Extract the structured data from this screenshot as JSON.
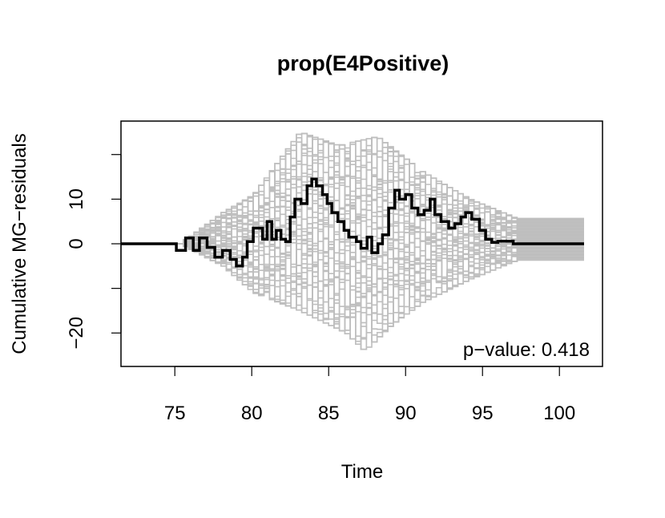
{
  "chart_data": {
    "type": "line",
    "title": "prop(E4Positive)",
    "xlabel": "Time",
    "ylabel": "Cumulative MG−residuals",
    "xlim": [
      71.5,
      102.8
    ],
    "ylim": [
      -27.5,
      27.5
    ],
    "xticks": [
      75,
      80,
      85,
      90,
      95,
      100
    ],
    "xtick_labels": [
      "75",
      "80",
      "85",
      "90",
      "95",
      "100"
    ],
    "yticks": [
      -20,
      -10,
      0,
      10,
      20
    ],
    "ytick_labels": [
      "−20",
      "",
      "0",
      "10",
      ""
    ],
    "grid": false,
    "annotation": "p−value: 0.418",
    "colors": {
      "observed": "#000000",
      "simulated": "#bebebe"
    },
    "observed_path": [
      [
        71.5,
        0
      ],
      [
        75.1,
        0
      ],
      [
        75.1,
        -1.5
      ],
      [
        75.7,
        -1.5
      ],
      [
        75.7,
        1.3
      ],
      [
        76.2,
        1.3
      ],
      [
        76.2,
        -1.5
      ],
      [
        76.6,
        -1.5
      ],
      [
        76.6,
        1.3
      ],
      [
        77.1,
        1.3
      ],
      [
        77.1,
        -0.8
      ],
      [
        77.6,
        -0.8
      ],
      [
        77.6,
        -3.0
      ],
      [
        78.1,
        -3.0
      ],
      [
        78.1,
        -1.5
      ],
      [
        78.6,
        -1.5
      ],
      [
        78.6,
        -3.5
      ],
      [
        79.0,
        -3.5
      ],
      [
        79.0,
        -5.0
      ],
      [
        79.4,
        -5.0
      ],
      [
        79.4,
        -3.0
      ],
      [
        79.7,
        -3.0
      ],
      [
        79.7,
        0.5
      ],
      [
        80.1,
        0.5
      ],
      [
        80.1,
        3.5
      ],
      [
        80.7,
        3.5
      ],
      [
        80.7,
        1.0
      ],
      [
        81.0,
        1.0
      ],
      [
        81.0,
        5.0
      ],
      [
        81.3,
        5.0
      ],
      [
        81.3,
        1.0
      ],
      [
        81.6,
        1.0
      ],
      [
        81.6,
        3.0
      ],
      [
        81.9,
        3.0
      ],
      [
        81.9,
        1.0
      ],
      [
        82.2,
        1.0
      ],
      [
        82.2,
        0.5
      ],
      [
        82.5,
        0.5
      ],
      [
        82.5,
        6.0
      ],
      [
        82.8,
        6.0
      ],
      [
        82.8,
        10.0
      ],
      [
        83.2,
        10.0
      ],
      [
        83.2,
        9.0
      ],
      [
        83.6,
        9.0
      ],
      [
        83.6,
        13.0
      ],
      [
        83.9,
        13.0
      ],
      [
        83.9,
        14.5
      ],
      [
        84.2,
        14.5
      ],
      [
        84.2,
        13.0
      ],
      [
        84.6,
        13.0
      ],
      [
        84.6,
        11.0
      ],
      [
        84.9,
        11.0
      ],
      [
        84.9,
        9.0
      ],
      [
        85.2,
        9.0
      ],
      [
        85.2,
        7.0
      ],
      [
        85.6,
        7.0
      ],
      [
        85.6,
        5.0
      ],
      [
        86.0,
        5.0
      ],
      [
        86.0,
        3.0
      ],
      [
        86.3,
        3.0
      ],
      [
        86.3,
        1.5
      ],
      [
        86.8,
        1.5
      ],
      [
        86.8,
        0.5
      ],
      [
        87.1,
        0.5
      ],
      [
        87.1,
        -1.0
      ],
      [
        87.5,
        -1.0
      ],
      [
        87.5,
        1.5
      ],
      [
        87.8,
        1.5
      ],
      [
        87.8,
        -2.0
      ],
      [
        88.2,
        -2.0
      ],
      [
        88.2,
        0
      ],
      [
        88.5,
        0
      ],
      [
        88.5,
        2.0
      ],
      [
        88.9,
        2.0
      ],
      [
        88.9,
        8.0
      ],
      [
        89.3,
        8.0
      ],
      [
        89.3,
        12.0
      ],
      [
        89.6,
        12.0
      ],
      [
        89.6,
        10.0
      ],
      [
        90.0,
        10.0
      ],
      [
        90.0,
        11.0
      ],
      [
        90.4,
        11.0
      ],
      [
        90.4,
        8.0
      ],
      [
        90.8,
        8.0
      ],
      [
        90.8,
        6.5
      ],
      [
        91.2,
        6.5
      ],
      [
        91.2,
        7.5
      ],
      [
        91.6,
        7.5
      ],
      [
        91.6,
        10.0
      ],
      [
        91.9,
        10.0
      ],
      [
        91.9,
        6.5
      ],
      [
        92.3,
        6.5
      ],
      [
        92.3,
        5.0
      ],
      [
        92.8,
        5.0
      ],
      [
        92.8,
        3.5
      ],
      [
        93.2,
        3.5
      ],
      [
        93.2,
        4.5
      ],
      [
        93.6,
        4.5
      ],
      [
        93.6,
        6.0
      ],
      [
        93.9,
        6.0
      ],
      [
        93.9,
        7.0
      ],
      [
        94.3,
        7.0
      ],
      [
        94.3,
        5.5
      ],
      [
        94.8,
        5.5
      ],
      [
        94.8,
        3.0
      ],
      [
        95.2,
        3.0
      ],
      [
        95.2,
        1.0
      ],
      [
        95.6,
        1.0
      ],
      [
        95.6,
        0.3
      ],
      [
        96.0,
        0.3
      ],
      [
        96.0,
        0.6
      ],
      [
        97.0,
        0.6
      ],
      [
        97.0,
        0
      ],
      [
        101.6,
        0
      ]
    ],
    "simulated_paths": {
      "count": 40,
      "start": 75.2,
      "end": 101.6,
      "envelope": [
        [
          75.2,
          0
        ],
        [
          78.0,
          7
        ],
        [
          80.0,
          11
        ],
        [
          83.0,
          25
        ],
        [
          85.5,
          22
        ],
        [
          88.0,
          24
        ],
        [
          91.0,
          16
        ],
        [
          94.0,
          10
        ],
        [
          97.0,
          5.8
        ],
        [
          101.6,
          5.8
        ]
      ],
      "envelope_low": [
        [
          75.2,
          0
        ],
        [
          78.0,
          -5
        ],
        [
          80.0,
          -11
        ],
        [
          83.0,
          -15
        ],
        [
          86.0,
          -20
        ],
        [
          87.2,
          -24
        ],
        [
          89.0,
          -18
        ],
        [
          91.0,
          -13
        ],
        [
          94.0,
          -8
        ],
        [
          97.0,
          -3.8
        ],
        [
          101.6,
          -3.8
        ]
      ]
    }
  }
}
